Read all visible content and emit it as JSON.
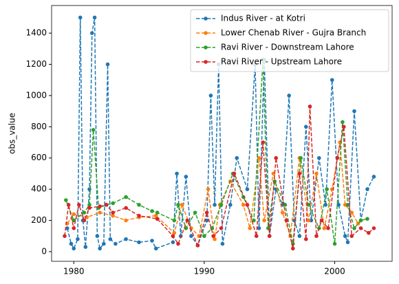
{
  "chart_data": {
    "type": "line",
    "y_label": "obs_value",
    "legend": "upper right",
    "xlim": [
      1978.3,
      2004.4
    ],
    "xticks": [
      1980,
      1990,
      2000
    ],
    "ylim": [
      -62,
      1577
    ],
    "yticks": [
      0,
      200,
      400,
      600,
      800,
      1000,
      1200,
      1400
    ],
    "series": [
      {
        "name": "Indus River - at Kotri",
        "color": "#1f77b4",
        "x": [
          1979.5,
          1979.8,
          1980.0,
          1980.3,
          1980.5,
          1980.7,
          1980.9,
          1981.2,
          1981.4,
          1981.6,
          1981.8,
          1982.0,
          1982.3,
          1982.6,
          1982.8,
          1983.2,
          1984,
          1985,
          1986,
          1986.3,
          1987.6,
          1987.9,
          1988.2,
          1988.6,
          1989,
          1989.5,
          1990.2,
          1990.5,
          1990.8,
          1991.1,
          1991.4,
          1992,
          1992.5,
          1993.3,
          1993.9,
          1994.2,
          1994.6,
          1995,
          1995.5,
          1996,
          1996.5,
          1996.9,
          1997.3,
          1997.8,
          1998.2,
          1998.8,
          1999.3,
          1999.8,
          2000.3,
          2000.8,
          2001,
          2001.5,
          2002,
          2002.5,
          2003
        ],
        "values": [
          150,
          50,
          20,
          80,
          1500,
          200,
          30,
          400,
          1400,
          1500,
          100,
          20,
          50,
          1200,
          80,
          50,
          80,
          60,
          70,
          20,
          60,
          500,
          100,
          480,
          100,
          40,
          200,
          1000,
          300,
          1200,
          50,
          300,
          600,
          400,
          1200,
          150,
          1230,
          100,
          400,
          300,
          1000,
          200,
          100,
          800,
          200,
          600,
          300,
          1100,
          300,
          100,
          60,
          900,
          200,
          400,
          480
        ]
      },
      {
        "name": "Lower Chenab River - Gujra Branch",
        "color": "#ff7f0e",
        "x": [
          1979.5,
          1980,
          1981,
          1982,
          1983,
          1984,
          1985,
          1986.3,
          1987.7,
          1988.3,
          1989,
          1989.6,
          1990.3,
          1990.8,
          1991.2,
          1992,
          1993,
          1993.5,
          1994.2,
          1994.6,
          1995.3,
          1996,
          1996.6,
          1997.3,
          1998,
          1998.6,
          1999.2,
          1999.8,
          2000.4,
          2000.8,
          2001.3,
          2001.8
        ],
        "values": [
          180,
          240,
          220,
          250,
          230,
          200,
          220,
          230,
          120,
          300,
          150,
          100,
          400,
          80,
          300,
          450,
          300,
          150,
          600,
          200,
          500,
          250,
          100,
          600,
          200,
          500,
          150,
          400,
          700,
          300,
          250,
          180
        ]
      },
      {
        "name": "Ravi River - Downstream Lahore",
        "color": "#2ca02c",
        "x": [
          1979.4,
          1980,
          1980.8,
          1981.2,
          1981.5,
          1981.9,
          1982.5,
          1983,
          1984,
          1985,
          1986,
          1986.4,
          1987.7,
          1988,
          1988.6,
          1989.3,
          1990,
          1990.6,
          1991.3,
          1992.2,
          1993,
          1993.8,
          1994.5,
          1994.9,
          1995.4,
          1996.2,
          1996.8,
          1997.4,
          1998,
          1998.8,
          1999.4,
          2000,
          2000.6,
          2001,
          2001.5,
          2002,
          2002.5
        ],
        "values": [
          330,
          200,
          250,
          300,
          780,
          280,
          300,
          310,
          350,
          300,
          260,
          250,
          200,
          300,
          150,
          250,
          100,
          150,
          300,
          500,
          350,
          200,
          1230,
          150,
          450,
          300,
          50,
          600,
          300,
          150,
          400,
          50,
          830,
          300,
          150,
          200,
          210
        ]
      },
      {
        "name": "Ravi River - Upstream Lahore",
        "color": "#d62728",
        "x": [
          1979.3,
          1979.6,
          1980,
          1980.4,
          1980.8,
          1981.2,
          1982,
          1982.5,
          1983,
          1984,
          1985,
          1986.4,
          1987.6,
          1988,
          1988.7,
          1989.5,
          1990.2,
          1990.7,
          1991.3,
          1992.3,
          1993.3,
          1994,
          1994.5,
          1995,
          1995.5,
          1996.3,
          1996.8,
          1997.3,
          1997.8,
          1998.1,
          1998.6,
          1999,
          1999.5,
          2000.2,
          2000.7,
          2001.3,
          2002,
          2002.6,
          2003
        ],
        "values": [
          100,
          300,
          150,
          300,
          200,
          280,
          290,
          300,
          250,
          280,
          230,
          210,
          100,
          50,
          200,
          40,
          250,
          100,
          150,
          500,
          300,
          100,
          700,
          100,
          600,
          200,
          20,
          500,
          80,
          930,
          100,
          200,
          150,
          600,
          800,
          100,
          150,
          120,
          150
        ]
      }
    ]
  }
}
